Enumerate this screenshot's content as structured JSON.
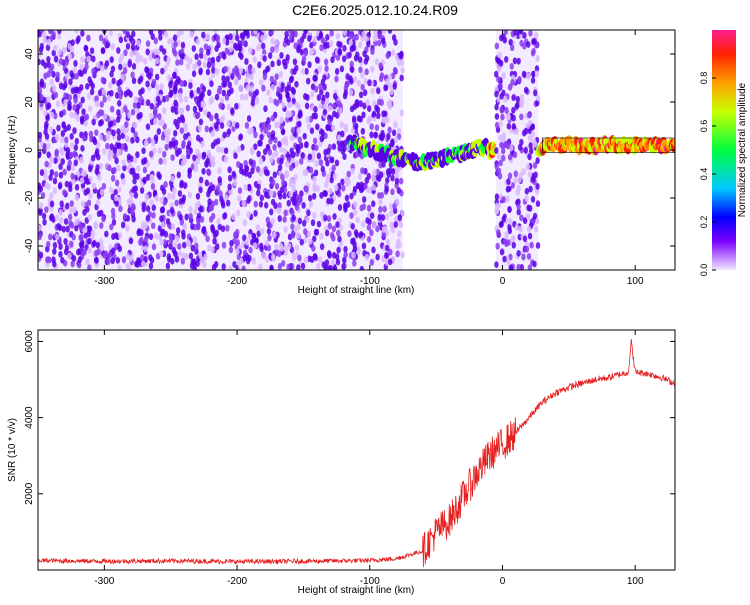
{
  "title": "C2E6.2025.012.10.24.R09",
  "colors": {
    "spectrogram_low": "#d9b8ff",
    "spectrogram_high": "#5a00e6",
    "snr_line": "#e62020",
    "frame": "#000000"
  },
  "chart_data": [
    {
      "type": "heatmap",
      "xlabel": "Height of straight line (km)",
      "ylabel": "Frequency (Hz)",
      "xlim": [
        -350,
        130
      ],
      "ylim": [
        -50,
        50
      ],
      "xticks": [
        -300,
        -200,
        -100,
        0,
        100
      ],
      "yticks": [
        -40,
        -20,
        0,
        20,
        40
      ],
      "grid": false,
      "colorbar": {
        "label": "Normalized spectral amplitude",
        "range": [
          0.0,
          1.0
        ],
        "ticks": [
          0.0,
          0.2,
          0.4,
          0.6,
          0.8
        ],
        "colormap": "rainbow-pink-to-violet"
      },
      "regions": [
        {
          "x": [
            -350,
            -75
          ],
          "description_value": "broadband noise",
          "level": 0.15
        },
        {
          "x": [
            -115,
            -10
          ],
          "center_freq": [
            3,
            -6,
            2
          ],
          "level": 0.6
        },
        {
          "x": [
            -10,
            -5
          ],
          "center_freq": 0,
          "level": 0.9
        },
        {
          "x": [
            -5,
            27
          ],
          "description_value": "broadband noise",
          "level": 0.15
        },
        {
          "x": [
            27,
            30
          ],
          "center_freq": 0,
          "level": 0.8
        },
        {
          "x": [
            30,
            130
          ],
          "center_freq": 2,
          "level": 0.95
        }
      ]
    },
    {
      "type": "line",
      "xlabel": "Height of straight line (km)",
      "ylabel": "SNR (10 * v/v)",
      "xlim": [
        -350,
        130
      ],
      "ylim": [
        0,
        6300
      ],
      "xticks": [
        -300,
        -200,
        -100,
        0,
        100
      ],
      "yticks": [
        2000,
        4000,
        6000
      ],
      "grid": false,
      "series": [
        {
          "x": [
            -350,
            -300,
            -250,
            -200,
            -150,
            -100,
            -80,
            -60,
            -50,
            -40,
            -30,
            -20,
            -10,
            0,
            10,
            20,
            30,
            40,
            50,
            60,
            70,
            80,
            90,
            95,
            97,
            100,
            110,
            120,
            130
          ],
          "values": [
            250,
            230,
            240,
            220,
            230,
            250,
            300,
            500,
            1000,
            1300,
            1900,
            2500,
            3000,
            3300,
            3600,
            4000,
            4400,
            4650,
            4800,
            4900,
            5000,
            5050,
            5150,
            5200,
            6000,
            5200,
            5150,
            5050,
            4900
          ]
        }
      ]
    }
  ]
}
